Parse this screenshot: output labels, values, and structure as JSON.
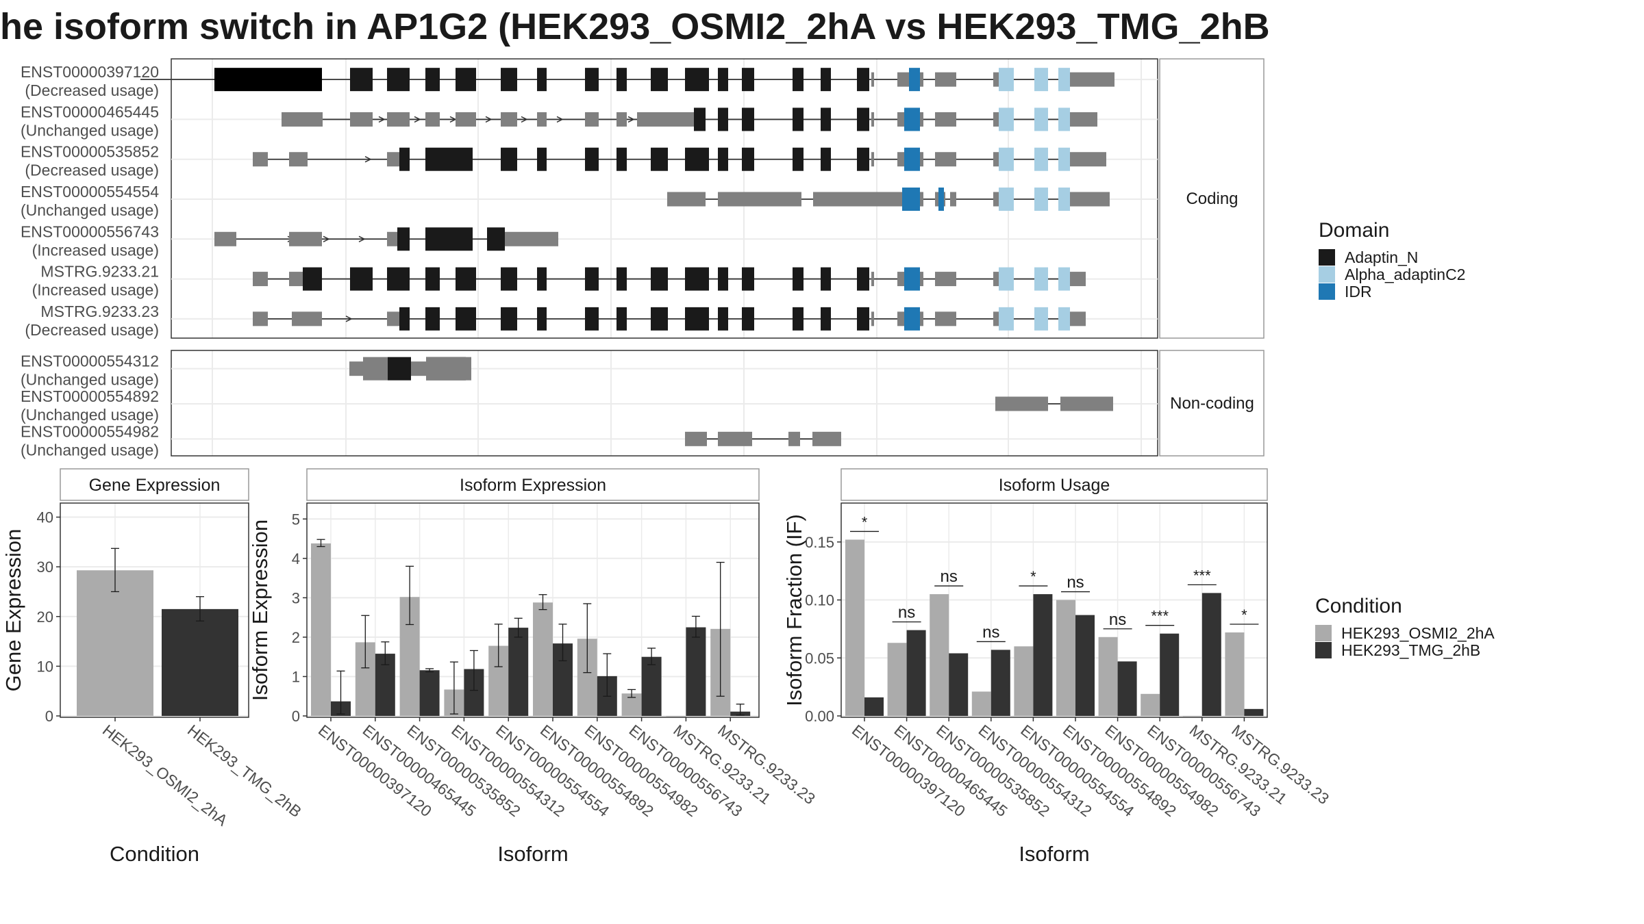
{
  "title": "he isoform switch in AP1G2 (HEK293_OSMI2_2hA vs HEK293_TMG_2hB",
  "domain_legend": {
    "title": "Domain",
    "items": [
      {
        "label": "Adaptin_N",
        "color": "#1a1a1a"
      },
      {
        "label": "Alpha_adaptinC2",
        "color": "#a6cee3"
      },
      {
        "label": "IDR",
        "color": "#1f78b4"
      }
    ]
  },
  "condition_legend": {
    "title": "Condition",
    "items": [
      {
        "label": "HEK293_OSMI2_2hA",
        "color": "#ababab"
      },
      {
        "label": "HEK293_TMG_2hB",
        "color": "#333333"
      }
    ]
  },
  "panel_labels": {
    "coding": "Coding",
    "noncoding": "Non-coding"
  },
  "transcripts": {
    "coding": [
      {
        "id": "ENST00000397120",
        "usage": "(Decreased usage)"
      },
      {
        "id": "ENST00000465445",
        "usage": "(Unchanged usage)"
      },
      {
        "id": "ENST00000535852",
        "usage": "(Decreased usage)"
      },
      {
        "id": "ENST00000554554",
        "usage": "(Unchanged usage)"
      },
      {
        "id": "ENST00000556743",
        "usage": "(Increased usage)"
      },
      {
        "id": "MSTRG.9233.21",
        "usage": "(Increased usage)"
      },
      {
        "id": "MSTRG.9233.23",
        "usage": "(Decreased usage)"
      }
    ],
    "noncoding": [
      {
        "id": "ENST00000554312",
        "usage": "(Unchanged usage)"
      },
      {
        "id": "ENST00000554892",
        "usage": "(Unchanged usage)"
      },
      {
        "id": "ENST00000554982",
        "usage": "(Unchanged usage)"
      }
    ]
  },
  "chart_data": [
    {
      "type": "bar",
      "title": "Gene Expression",
      "xlabel": "Condition",
      "ylabel": "Gene Expression",
      "ylim": [
        0,
        42
      ],
      "yticks": [
        0,
        10,
        20,
        30,
        40
      ],
      "categories": [
        "HEK293_OSMI2_2hA",
        "HEK293_TMG_2hB"
      ],
      "values": [
        29.3,
        21.5
      ],
      "error": [
        [
          25.0,
          33.7
        ],
        [
          19.1,
          24.0
        ]
      ]
    },
    {
      "type": "bar",
      "title": "Isoform Expression",
      "xlabel": "Isoform",
      "ylabel": "Isoform Expression",
      "ylim": [
        0,
        5.3
      ],
      "yticks": [
        0,
        1,
        2,
        3,
        4,
        5
      ],
      "categories": [
        "ENST00000397120",
        "ENST00000465445",
        "ENST00000535852",
        "ENST00000554312",
        "ENST00000554554",
        "ENST00000554892",
        "ENST00000554982",
        "ENST00000556743",
        "MSTRG.9233.21",
        "MSTRG.9233.23"
      ],
      "series": [
        {
          "name": "HEK293_OSMI2_2hA",
          "values": [
            4.38,
            1.87,
            3.02,
            0.67,
            1.78,
            2.88,
            1.96,
            0.57,
            0.0,
            2.21
          ],
          "error": [
            [
              4.3,
              4.48
            ],
            [
              1.22,
              2.55
            ],
            [
              2.32,
              3.8
            ],
            [
              0.05,
              1.37
            ],
            [
              1.25,
              2.33
            ],
            [
              2.7,
              3.08
            ],
            [
              1.1,
              2.85
            ],
            [
              0.47,
              0.67
            ],
            null,
            [
              0.5,
              3.9
            ]
          ]
        },
        {
          "name": "HEK293_TMG_2hB",
          "values": [
            0.37,
            1.58,
            1.16,
            1.19,
            2.24,
            1.84,
            1.01,
            1.5,
            2.25,
            0.11
          ],
          "error": [
            [
              0.05,
              1.14
            ],
            [
              1.3,
              1.88
            ],
            [
              1.12,
              1.2
            ],
            [
              0.65,
              1.66
            ],
            [
              2.0,
              2.48
            ],
            [
              1.4,
              2.33
            ],
            [
              0.5,
              1.58
            ],
            [
              1.3,
              1.72
            ],
            [
              2.0,
              2.53
            ],
            [
              0.02,
              0.3
            ]
          ]
        }
      ]
    },
    {
      "type": "bar",
      "title": "Isoform Usage",
      "xlabel": "Isoform",
      "ylabel": "Isoform Fraction (IF)",
      "ylim": [
        0,
        0.18
      ],
      "yticks": [
        "0.00",
        "0.05",
        "0.10",
        "0.15"
      ],
      "categories": [
        "ENST00000397120",
        "ENST00000465445",
        "ENST00000535852",
        "ENST00000554312",
        "ENST00000554554",
        "ENST00000554892",
        "ENST00000554982",
        "ENST00000556743",
        "MSTRG.9233.21",
        "MSTRG.9233.23"
      ],
      "series": [
        {
          "name": "HEK293_OSMI2_2hA",
          "values": [
            0.152,
            0.063,
            0.105,
            0.021,
            0.06,
            0.1,
            0.068,
            0.019,
            0.0,
            0.072
          ]
        },
        {
          "name": "HEK293_TMG_2hB",
          "values": [
            0.016,
            0.074,
            0.054,
            0.057,
            0.105,
            0.087,
            0.047,
            0.071,
            0.106,
            0.006
          ]
        }
      ],
      "significance": [
        "*",
        "ns",
        "ns",
        "ns",
        "*",
        "ns",
        "ns",
        "***",
        "***",
        "*"
      ]
    }
  ]
}
